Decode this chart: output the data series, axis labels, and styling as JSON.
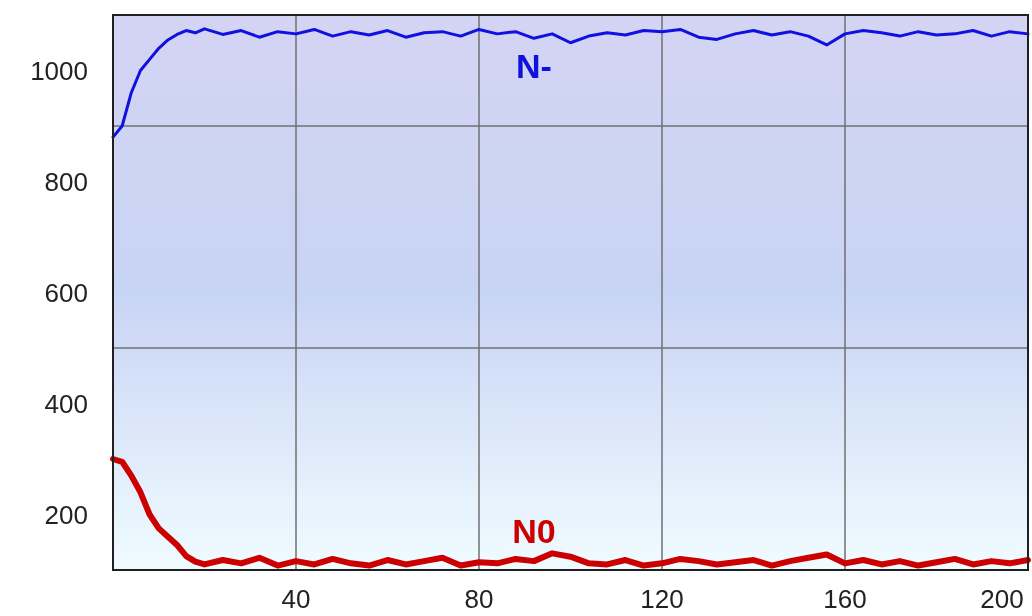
{
  "chart_data": {
    "type": "line",
    "xlim": [
      0,
      200
    ],
    "xticks": [
      40,
      80,
      120,
      160,
      200
    ],
    "ylim": [
      100,
      1100
    ],
    "yticks": [
      200,
      400,
      600,
      800,
      1000,
      {
        "value": 500,
        "label": null
      },
      {
        "value": 900,
        "label": null
      }
    ],
    "grid": true,
    "series": [
      {
        "name": "N-",
        "color": "#1010e0",
        "x": [
          0,
          2,
          4,
          6,
          8,
          10,
          12,
          14,
          16,
          18,
          20,
          24,
          28,
          32,
          36,
          40,
          44,
          48,
          52,
          56,
          60,
          64,
          68,
          72,
          76,
          80,
          84,
          88,
          92,
          96,
          100,
          104,
          108,
          112,
          116,
          120,
          124,
          128,
          132,
          136,
          140,
          144,
          148,
          152,
          156,
          160,
          164,
          168,
          172,
          176,
          180,
          184,
          188,
          192,
          196,
          200
        ],
        "values": [
          880,
          900,
          960,
          1000,
          1020,
          1040,
          1055,
          1065,
          1072,
          1068,
          1075,
          1065,
          1072,
          1060,
          1070,
          1066,
          1074,
          1062,
          1070,
          1064,
          1072,
          1060,
          1068,
          1070,
          1062,
          1074,
          1066,
          1070,
          1058,
          1066,
          1050,
          1062,
          1068,
          1064,
          1072,
          1070,
          1074,
          1060,
          1056,
          1066,
          1072,
          1064,
          1070,
          1062,
          1046,
          1066,
          1072,
          1068,
          1062,
          1070,
          1064,
          1066,
          1072,
          1062,
          1070,
          1066
        ]
      },
      {
        "name": "N0",
        "color": "#cc0000",
        "x": [
          0,
          2,
          4,
          6,
          8,
          10,
          12,
          14,
          16,
          18,
          20,
          24,
          28,
          32,
          36,
          40,
          44,
          48,
          52,
          56,
          60,
          64,
          68,
          72,
          76,
          80,
          84,
          88,
          92,
          96,
          100,
          104,
          108,
          112,
          116,
          120,
          124,
          128,
          132,
          136,
          140,
          144,
          148,
          152,
          156,
          160,
          164,
          168,
          172,
          176,
          180,
          184,
          188,
          192,
          196,
          200
        ],
        "values": [
          300,
          295,
          270,
          240,
          200,
          175,
          160,
          145,
          125,
          115,
          110,
          118,
          112,
          122,
          108,
          116,
          110,
          120,
          112,
          108,
          118,
          110,
          116,
          122,
          108,
          114,
          112,
          120,
          116,
          130,
          124,
          112,
          110,
          118,
          108,
          112,
          120,
          116,
          110,
          114,
          118,
          108,
          116,
          122,
          128,
          112,
          118,
          110,
          116,
          108,
          114,
          120,
          110,
          116,
          112,
          118
        ]
      }
    ]
  }
}
